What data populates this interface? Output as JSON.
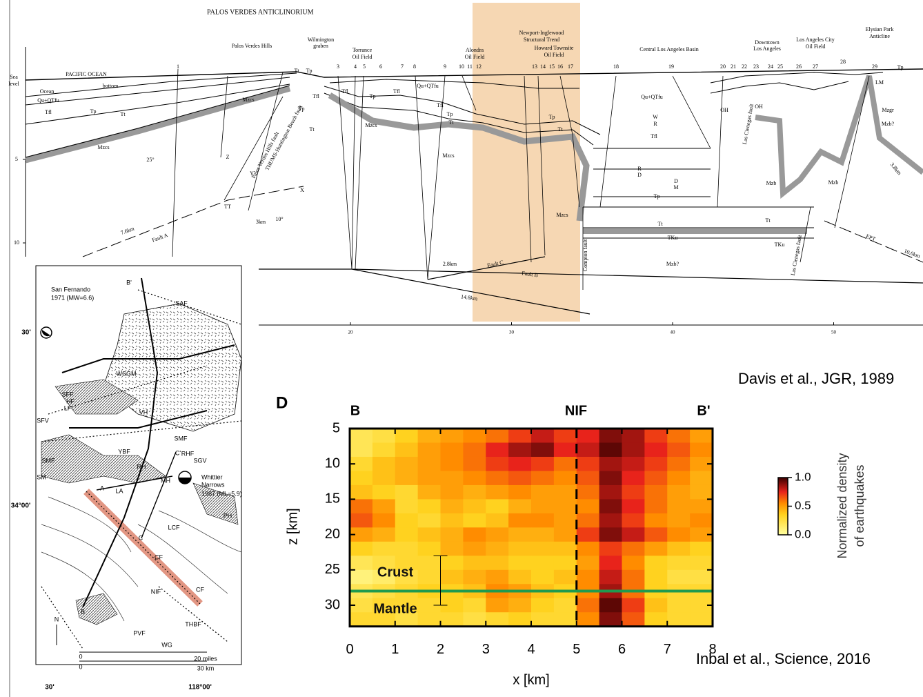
{
  "cross_section": {
    "title": "PALOS VERDES ANTICLINORIUM",
    "labels": [
      "Palos Verdes Hills",
      "Wilmington",
      "graben",
      "Torrance",
      "Oil Field",
      "Alondra",
      "Oil Field",
      "Newport-Inglewood",
      "Structural Trend",
      "Howard Townsite",
      "Oil Field",
      "Central Los Angeles Basin",
      "Downtown",
      "Los Angeles",
      "Los Angeles City",
      "Oil Field",
      "Elysian Park",
      "Anticline",
      "PACIFIC OCEAN",
      "Sea",
      "level",
      "Ocean",
      "bottom",
      "Qu+QTfu",
      "Tfl",
      "Tp",
      "Tt",
      "Mzcs",
      "Mzcs",
      "25°",
      "Z",
      "Y",
      "X",
      "TT",
      "Palos Verdes Hills fault",
      "THUMS-Huntington Beach fault",
      "7.6km",
      "Fault A",
      "3km",
      "10°",
      "Tt",
      "Tp",
      "Tfl",
      "Tp",
      "Tt",
      "Tfl",
      "Tp",
      "Tfl",
      "Mzcs",
      "Qu+QTfu",
      "Tfl",
      "Tp",
      "Tt",
      "Mzcs",
      "Tp",
      "Tt",
      "Mzcs",
      "Qu+QTfu",
      "W",
      "R",
      "Tfl",
      "R",
      "D",
      "D",
      "M",
      "Tp",
      "Tt",
      "TKu",
      "Mzb?",
      "Mzb",
      "Tt",
      "TKu",
      "Mzb",
      "Tp",
      "Mzgr",
      "Mzb?",
      "Fault C",
      "2.8km",
      "Fault B",
      "14.8km",
      "Compton fault",
      "Las Cienegas fault",
      "3.8km",
      "EPT",
      "10.0km",
      "OH",
      "OH",
      "LM",
      "Las Cienegas fault"
    ],
    "wells": [
      "1",
      "3",
      "4",
      "5",
      "6",
      "7",
      "8",
      "9",
      "10",
      "11",
      "12",
      "13",
      "14",
      "15",
      "16",
      "17",
      "18",
      "19",
      "20",
      "21",
      "22",
      "23",
      "24",
      "25",
      "26",
      "27",
      "28",
      "29"
    ],
    "xticks": [
      20,
      30,
      40,
      50
    ],
    "depth_ticks": [
      5,
      10
    ],
    "credit": "Davis et al., JGR, 1989"
  },
  "map": {
    "labels": [
      "B'",
      "SAF",
      "San Fernando",
      "1971 (MW=6.6)",
      "WSGM",
      "LF",
      "SFF",
      "HF",
      "SFV",
      "VH",
      "YBF",
      "RH",
      "MH",
      "C'",
      "RHF",
      "SGV",
      "Whittier",
      "Narrows",
      "1987 (ML=5.9)",
      "SMF",
      "SM",
      "A",
      "LA",
      "C",
      "LCF",
      "CF",
      "NIF",
      "THBF",
      "PVF",
      "WG",
      "B",
      "N",
      "0",
      "20 miles",
      "0",
      "30 km",
      "30'",
      "34°00'",
      "30'",
      "118°00'",
      "SMF",
      "CF",
      "PH"
    ]
  },
  "chart_data": {
    "type": "heatmap",
    "panel_label": "D",
    "xlabel": "x [km]",
    "ylabel": "z [km]",
    "top_labels": [
      "B",
      "NIF",
      "B'"
    ],
    "annotations": [
      "Crust",
      "Mantle"
    ],
    "credit": "Inbal et al., Science, 2016",
    "xlim": [
      0,
      8
    ],
    "ylim": [
      5,
      33
    ],
    "xticks": [
      0,
      1,
      2,
      3,
      4,
      5,
      6,
      7,
      8
    ],
    "yticks": [
      5,
      10,
      15,
      20,
      25,
      30
    ],
    "x": [
      0.25,
      0.75,
      1.25,
      1.75,
      2.25,
      2.75,
      3.25,
      3.75,
      4.25,
      4.75,
      5.25,
      5.75,
      6.25,
      6.75,
      7.25,
      7.75
    ],
    "y": [
      6,
      8,
      10,
      12,
      14,
      16,
      18,
      20,
      22,
      24,
      26,
      28,
      30,
      32
    ],
    "values": [
      [
        0.2,
        0.25,
        0.35,
        0.45,
        0.5,
        0.55,
        0.6,
        0.7,
        0.8,
        0.7,
        0.75,
        0.9,
        0.85,
        0.7,
        0.6,
        0.5
      ],
      [
        0.2,
        0.3,
        0.4,
        0.5,
        0.55,
        0.6,
        0.75,
        0.85,
        0.9,
        0.75,
        0.8,
        0.95,
        0.85,
        0.75,
        0.65,
        0.55
      ],
      [
        0.3,
        0.4,
        0.45,
        0.5,
        0.55,
        0.6,
        0.7,
        0.75,
        0.7,
        0.6,
        0.7,
        0.85,
        0.8,
        0.7,
        0.6,
        0.5
      ],
      [
        0.35,
        0.4,
        0.45,
        0.5,
        0.5,
        0.55,
        0.6,
        0.65,
        0.6,
        0.55,
        0.65,
        0.9,
        0.75,
        0.65,
        0.55,
        0.45
      ],
      [
        0.4,
        0.35,
        0.3,
        0.45,
        0.5,
        0.45,
        0.5,
        0.55,
        0.5,
        0.5,
        0.6,
        0.85,
        0.7,
        0.6,
        0.5,
        0.45
      ],
      [
        0.6,
        0.5,
        0.3,
        0.35,
        0.45,
        0.4,
        0.35,
        0.45,
        0.5,
        0.5,
        0.55,
        0.9,
        0.75,
        0.6,
        0.5,
        0.5
      ],
      [
        0.65,
        0.55,
        0.35,
        0.3,
        0.4,
        0.35,
        0.4,
        0.55,
        0.55,
        0.5,
        0.6,
        0.85,
        0.7,
        0.55,
        0.5,
        0.55
      ],
      [
        0.5,
        0.45,
        0.35,
        0.4,
        0.45,
        0.55,
        0.5,
        0.45,
        0.45,
        0.5,
        0.7,
        0.9,
        0.8,
        0.65,
        0.55,
        0.5
      ],
      [
        0.35,
        0.3,
        0.3,
        0.35,
        0.45,
        0.5,
        0.45,
        0.4,
        0.4,
        0.4,
        0.55,
        0.7,
        0.6,
        0.5,
        0.4,
        0.35
      ],
      [
        0.2,
        0.25,
        0.3,
        0.3,
        0.35,
        0.4,
        0.4,
        0.35,
        0.35,
        0.35,
        0.5,
        0.75,
        0.55,
        0.35,
        0.3,
        0.3
      ],
      [
        0.1,
        0.15,
        0.25,
        0.3,
        0.4,
        0.45,
        0.5,
        0.4,
        0.35,
        0.4,
        0.55,
        0.8,
        0.6,
        0.35,
        0.25,
        0.25
      ],
      [
        0.2,
        0.25,
        0.3,
        0.35,
        0.35,
        0.4,
        0.55,
        0.5,
        0.4,
        0.35,
        0.55,
        0.85,
        0.6,
        0.35,
        0.3,
        0.3
      ],
      [
        0.25,
        0.3,
        0.3,
        0.3,
        0.35,
        0.3,
        0.5,
        0.45,
        0.35,
        0.3,
        0.6,
        0.95,
        0.7,
        0.4,
        0.3,
        0.3
      ],
      [
        0.3,
        0.3,
        0.25,
        0.3,
        0.3,
        0.25,
        0.3,
        0.35,
        0.3,
        0.3,
        0.55,
        0.9,
        0.65,
        0.35,
        0.3,
        0.3
      ]
    ],
    "lines": [
      {
        "axis": "x",
        "value": 5,
        "style": "dashed",
        "color": "#000000"
      },
      {
        "axis": "y",
        "value": 28,
        "style": "solid",
        "color": "#1f9a4f"
      }
    ],
    "error_bar": {
      "x": 2,
      "low": 23,
      "high": 30
    },
    "colorbar": {
      "label": [
        "Normalized density",
        "of earthquakes"
      ],
      "lim": [
        0,
        1
      ],
      "ticks": [
        {
          "value": 0,
          "label": "0.0"
        },
        {
          "value": 0.5,
          "label": "0.5"
        },
        {
          "value": 1,
          "label": "1.0"
        }
      ]
    }
  }
}
